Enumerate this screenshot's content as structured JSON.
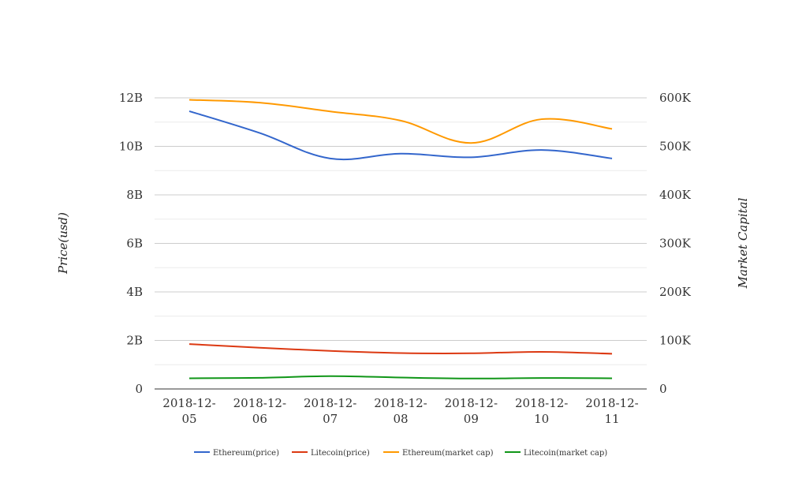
{
  "chart_data": {
    "type": "line",
    "title": "",
    "x": [
      "2018-12-05",
      "2018-12-06",
      "2018-12-07",
      "2018-12-08",
      "2018-12-09",
      "2018-12-10",
      "2018-12-11"
    ],
    "x_tick_lines": [
      [
        "2018-12-",
        "05"
      ],
      [
        "2018-12-",
        "06"
      ],
      [
        "2018-12-",
        "07"
      ],
      [
        "2018-12-",
        "08"
      ],
      [
        "2018-12-",
        "09"
      ],
      [
        "2018-12-",
        "10"
      ],
      [
        "2018-12-",
        "11"
      ]
    ],
    "left_axis": {
      "label": "Price(usd)",
      "range": [
        0,
        12000000000
      ],
      "ticks": [
        0,
        2000000000,
        4000000000,
        6000000000,
        8000000000,
        10000000000,
        12000000000
      ],
      "tick_labels": [
        "0",
        "2B",
        "4B",
        "6B",
        "8B",
        "10B",
        "12B"
      ]
    },
    "right_axis": {
      "label": "Market Capital",
      "range": [
        0,
        600000
      ],
      "ticks": [
        0,
        100000,
        200000,
        300000,
        400000,
        500000,
        600000
      ],
      "tick_labels": [
        "0",
        "100K",
        "200K",
        "300K",
        "400K",
        "500K",
        "600K"
      ]
    },
    "grid": true,
    "legend_position": "bottom-center",
    "series": [
      {
        "name": "Ethereum(price)",
        "axis": "left",
        "color": "#3366cc",
        "values": [
          11450000000,
          10550000000,
          9500000000,
          9700000000,
          9550000000,
          9850000000,
          9500000000
        ]
      },
      {
        "name": "Litecoin(price)",
        "axis": "left",
        "color": "#dc3912",
        "values": [
          1850000000,
          1700000000,
          1570000000,
          1480000000,
          1470000000,
          1530000000,
          1450000000
        ]
      },
      {
        "name": "Ethereum(market cap)",
        "axis": "right",
        "color": "#ff9900",
        "values": [
          596000,
          590000,
          572000,
          553000,
          507000,
          556000,
          536000
        ]
      },
      {
        "name": "Litecoin(market cap)",
        "axis": "right",
        "color": "#109618",
        "values": [
          22000,
          23000,
          26500,
          23500,
          21500,
          22500,
          22000
        ]
      }
    ]
  }
}
